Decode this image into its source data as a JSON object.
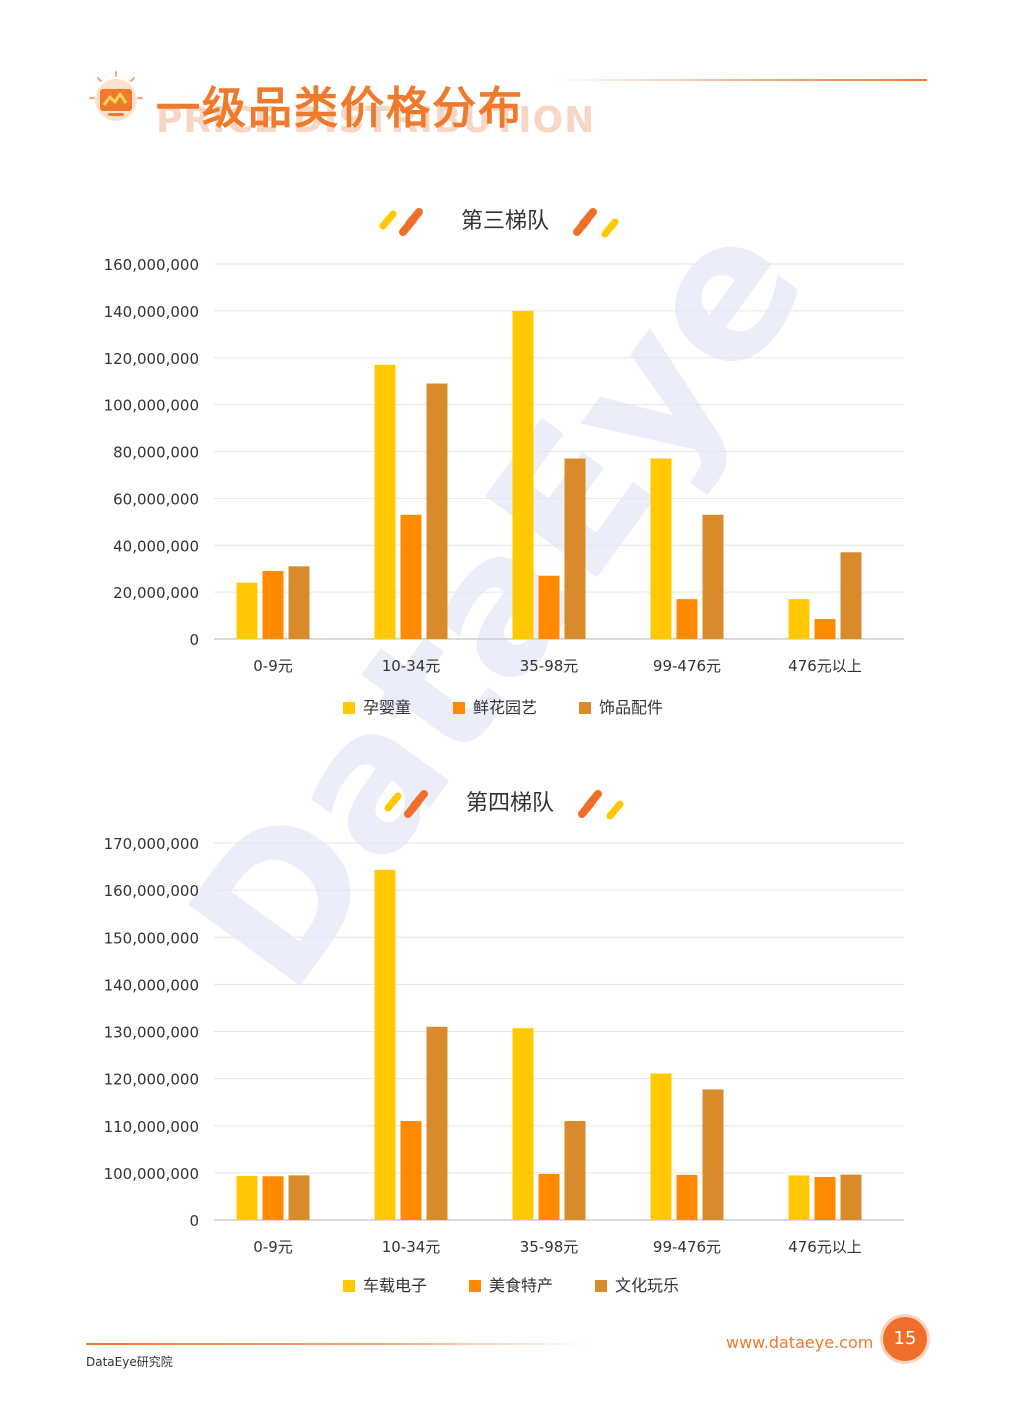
{
  "page": {
    "title_cn": "一级品类价格分布",
    "title_en": "PRICE DISTRIBUTION",
    "watermark": "DataEye",
    "footer_org": "DataEye研究院",
    "footer_url": "www.dataeye.com",
    "page_number": "15",
    "accent_color": "#ef7a2b"
  },
  "chart_data": [
    {
      "type": "bar",
      "title": "第三梯队",
      "categories": [
        "0-9元",
        "10-34元",
        "35-98元",
        "99-476元",
        "476元以上"
      ],
      "series": [
        {
          "name": "孕婴童",
          "color": "#ffc800",
          "values": [
            24000000,
            117000000,
            140000000,
            77000000,
            17000000
          ]
        },
        {
          "name": "鲜花园艺",
          "color": "#ff8a00",
          "values": [
            29000000,
            53000000,
            27000000,
            17000000,
            8500000
          ]
        },
        {
          "name": "饰品配件",
          "color": "#d98a2b",
          "values": [
            31000000,
            109000000,
            77000000,
            53000000,
            37000000
          ]
        }
      ],
      "yticks": [
        0,
        20000000,
        40000000,
        60000000,
        80000000,
        100000000,
        120000000,
        140000000,
        160000000
      ],
      "ytick_labels": [
        "0",
        "20,000,000",
        "40,000,000",
        "60,000,000",
        "80,000,000",
        "100,000,000",
        "120,000,000",
        "140,000,000",
        "160,000,000"
      ],
      "ylim": [
        0,
        160000000
      ],
      "grid": true,
      "legend": "bottom"
    },
    {
      "type": "bar",
      "title": "第四梯队",
      "categories": [
        "0-9元",
        "10-34元",
        "35-98元",
        "99-476元",
        "476元以上"
      ],
      "series": [
        {
          "name": "车载电子",
          "color": "#ffc800",
          "values": [
            93500000,
            164300000,
            130700000,
            121100000,
            94600000
          ]
        },
        {
          "name": "美食特产",
          "color": "#ff8a00",
          "values": [
            92800000,
            111000000,
            97700000,
            95600000,
            91300000
          ]
        },
        {
          "name": "文化玩乐",
          "color": "#d98a2b",
          "values": [
            94600000,
            131000000,
            111000000,
            117700000,
            96300000
          ]
        }
      ],
      "yticks": [
        0,
        100000000,
        110000000,
        120000000,
        130000000,
        140000000,
        150000000,
        160000000,
        170000000
      ],
      "ytick_labels": [
        "0",
        "100,000,000",
        "110,000,000",
        "120,000,000",
        "130,000,000",
        "140,000,000",
        "150,000,000",
        "160,000,000",
        "170,000,000"
      ],
      "ylim": [
        0,
        170000000
      ],
      "grid": true,
      "legend": "bottom"
    }
  ]
}
